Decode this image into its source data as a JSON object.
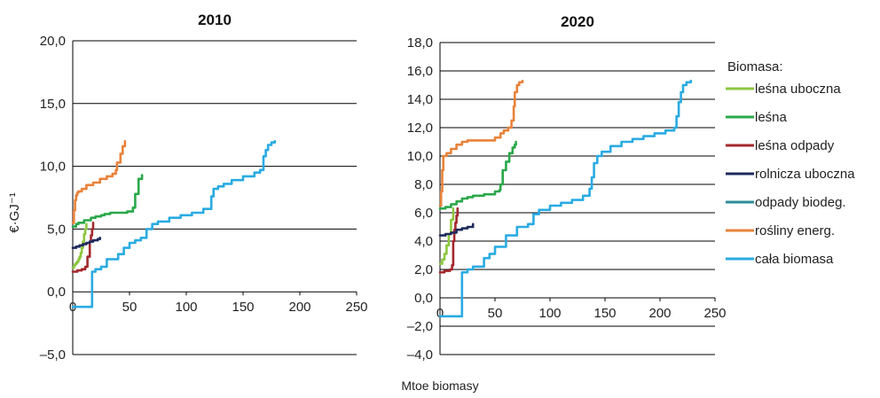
{
  "xlabel": "Mtoe biomasy",
  "ylabel": "€·GJ⁻¹",
  "legend": {
    "title": "Biomasa:",
    "items": [
      {
        "label": "leśna uboczna",
        "color": "#8dc63f"
      },
      {
        "label": "leśna",
        "color": "#2aa84a"
      },
      {
        "label": "leśna odpady",
        "color": "#a3282d"
      },
      {
        "label": "rolnicza uboczna",
        "color": "#1f2a5c"
      },
      {
        "label": "odpady biodeg.",
        "color": "#2e8b99"
      },
      {
        "label": "rośliny energ.",
        "color": "#e8823a"
      },
      {
        "label": "cała biomasa",
        "color": "#29abe2"
      }
    ]
  },
  "chart_data": [
    {
      "type": "line",
      "title": "2010",
      "xlabel": "Mtoe biomasy",
      "ylabel": "€·GJ⁻¹",
      "xlim": [
        0,
        250
      ],
      "ylim": [
        -5,
        20
      ],
      "xticks": [
        0,
        50,
        100,
        150,
        200,
        250
      ],
      "xtick_labels": [
        "0",
        "50",
        "100",
        "150",
        "200",
        "250"
      ],
      "yticks": [
        -5,
        0,
        5,
        10,
        15,
        20
      ],
      "ytick_labels": [
        "–5,0",
        "0,0",
        "5,0",
        "10,0",
        "15,0",
        "20,0"
      ],
      "grid": "horizontal",
      "series": [
        {
          "name": "leśna uboczna",
          "color": "#8dc63f",
          "x": [
            0,
            1,
            2,
            3,
            4,
            5,
            6,
            7,
            8,
            9,
            10,
            11,
            12
          ],
          "y": [
            1.9,
            2.1,
            2.2,
            2.3,
            2.4,
            2.6,
            2.8,
            3.1,
            3.5,
            4.0,
            4.6,
            5.0,
            5.4
          ]
        },
        {
          "name": "leśna",
          "color": "#2aa84a",
          "x": [
            0,
            3,
            5,
            10,
            16,
            20,
            25,
            28,
            33,
            40,
            48,
            53,
            55,
            58,
            61
          ],
          "y": [
            5.2,
            5.4,
            5.5,
            5.7,
            5.9,
            6.0,
            6.1,
            6.2,
            6.3,
            6.3,
            6.4,
            6.7,
            7.8,
            9.0,
            9.3
          ]
        },
        {
          "name": "leśna odpady",
          "color": "#a3282d",
          "x": [
            0,
            4,
            8,
            11,
            13,
            15,
            16,
            17,
            18
          ],
          "y": [
            1.6,
            1.7,
            1.8,
            2.0,
            2.8,
            4.0,
            4.5,
            5.0,
            5.5
          ]
        },
        {
          "name": "rolnicza uboczna",
          "color": "#1f2a5c",
          "x": [
            0,
            3,
            6,
            9,
            12,
            15,
            18,
            22,
            24
          ],
          "y": [
            3.5,
            3.6,
            3.7,
            3.8,
            3.9,
            4.0,
            4.1,
            4.2,
            4.3
          ]
        },
        {
          "name": "rośliny energ.",
          "color": "#e8823a",
          "x": [
            0,
            1,
            2,
            3,
            4,
            5,
            8,
            12,
            18,
            24,
            30,
            35,
            38,
            39,
            42,
            44,
            46
          ],
          "y": [
            5.5,
            6.5,
            7.3,
            7.7,
            7.9,
            8.0,
            8.2,
            8.5,
            8.7,
            9.0,
            9.2,
            9.4,
            9.7,
            10.3,
            11.0,
            11.6,
            12.0
          ]
        },
        {
          "name": "cała biomasa",
          "color": "#29abe2",
          "x": [
            0,
            16,
            17,
            20,
            25,
            30,
            40,
            45,
            50,
            55,
            60,
            65,
            70,
            75,
            85,
            95,
            105,
            115,
            122,
            124,
            128,
            133,
            140,
            150,
            160,
            165,
            168,
            170,
            172,
            175,
            178
          ],
          "y": [
            -1.2,
            -1.2,
            1.6,
            1.8,
            2.0,
            2.6,
            3.0,
            3.5,
            3.9,
            4.1,
            4.3,
            5.0,
            5.4,
            5.6,
            5.9,
            6.1,
            6.3,
            6.6,
            7.6,
            8.2,
            8.4,
            8.6,
            8.9,
            9.2,
            9.5,
            9.7,
            10.8,
            11.3,
            11.7,
            11.9,
            12.0
          ]
        }
      ]
    },
    {
      "type": "line",
      "title": "2020",
      "xlabel": "Mtoe biomasy",
      "ylabel": "€·GJ⁻¹",
      "xlim": [
        0,
        250
      ],
      "ylim": [
        -4,
        18
      ],
      "xticks": [
        0,
        50,
        100,
        150,
        200,
        250
      ],
      "xtick_labels": [
        "0",
        "50",
        "100",
        "150",
        "200",
        "250"
      ],
      "yticks": [
        -4,
        -2,
        0,
        2,
        4,
        6,
        8,
        10,
        12,
        14,
        16,
        18
      ],
      "ytick_labels": [
        "–4,0",
        "–2,0",
        "0,0",
        "2,0",
        "4,0",
        "6,0",
        "8,0",
        "10,0",
        "12,0",
        "14,0",
        "16,0",
        "18,0"
      ],
      "grid": "horizontal",
      "series": [
        {
          "name": "leśna uboczna",
          "color": "#8dc63f",
          "x": [
            0,
            2,
            4,
            6,
            8,
            10,
            12
          ],
          "y": [
            2.4,
            2.7,
            3.1,
            3.7,
            4.5,
            5.5,
            6.3
          ]
        },
        {
          "name": "leśna",
          "color": "#2aa84a",
          "x": [
            0,
            5,
            10,
            15,
            20,
            25,
            30,
            40,
            50,
            54,
            55,
            57,
            60,
            63,
            66,
            68,
            69
          ],
          "y": [
            6.3,
            6.4,
            6.6,
            6.8,
            7.0,
            7.1,
            7.2,
            7.3,
            7.5,
            7.6,
            8.0,
            9.0,
            9.6,
            10.2,
            10.6,
            10.8,
            11.0
          ]
        },
        {
          "name": "leśna odpady",
          "color": "#a3282d",
          "x": [
            0,
            4,
            9,
            11,
            12,
            13,
            14,
            15,
            16
          ],
          "y": [
            1.8,
            1.9,
            2.0,
            2.3,
            4.0,
            4.8,
            5.3,
            5.8,
            6.3
          ]
        },
        {
          "name": "rolnicza uboczna",
          "color": "#1f2a5c",
          "x": [
            0,
            5,
            10,
            15,
            20,
            25,
            30
          ],
          "y": [
            4.4,
            4.5,
            4.6,
            4.8,
            4.9,
            5.0,
            5.2
          ]
        },
        {
          "name": "rośliny energ.",
          "color": "#e8823a",
          "x": [
            0,
            1,
            2,
            3,
            6,
            10,
            15,
            20,
            25,
            30,
            40,
            50,
            55,
            58,
            62,
            65,
            67,
            68,
            70,
            72,
            75
          ],
          "y": [
            6.5,
            7.5,
            9.0,
            10.0,
            10.2,
            10.5,
            10.8,
            11.0,
            11.1,
            11.1,
            11.1,
            11.3,
            11.6,
            11.8,
            12.0,
            12.5,
            13.5,
            14.5,
            15.0,
            15.2,
            15.3
          ]
        },
        {
          "name": "cała biomasa",
          "color": "#29abe2",
          "x": [
            0,
            19,
            20,
            25,
            30,
            40,
            45,
            50,
            60,
            70,
            80,
            85,
            90,
            100,
            110,
            120,
            130,
            136,
            138,
            140,
            143,
            147,
            155,
            165,
            175,
            185,
            195,
            205,
            213,
            215,
            217,
            219,
            221,
            224,
            228
          ],
          "y": [
            -1.3,
            -1.3,
            1.8,
            2.0,
            2.2,
            2.8,
            3.1,
            3.6,
            4.4,
            5.0,
            5.2,
            5.9,
            6.2,
            6.5,
            6.7,
            6.9,
            7.2,
            7.7,
            8.5,
            9.5,
            10.0,
            10.3,
            10.7,
            11.0,
            11.2,
            11.4,
            11.6,
            11.8,
            12.0,
            12.8,
            13.8,
            14.5,
            15.0,
            15.2,
            15.3
          ]
        }
      ]
    }
  ]
}
